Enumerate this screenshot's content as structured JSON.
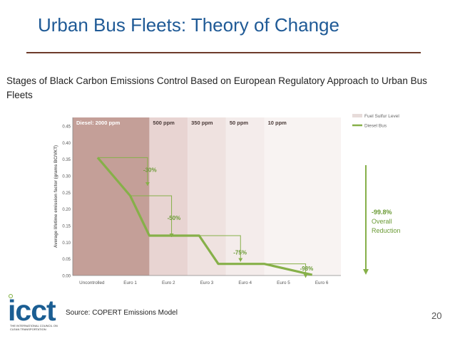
{
  "slide": {
    "title": "Urban Bus Fleets: Theory of Change",
    "subtitle": "Stages of Black Carbon Emissions Control Based on European Regulatory Approach to Urban Bus Fleets",
    "source": "Source: COPERT Emissions Model",
    "page_number": "20",
    "logo_text": "icct",
    "logo_tagline": "THE INTERNATIONAL COUNCIL ON CLEAN TRANSPORTATION"
  },
  "colors": {
    "title": "#1f5a96",
    "rule": "#6d3b2a",
    "line": "#86b049",
    "band_dark": "#c49f98",
    "band_1": "#e8d4d2",
    "band_2": "#efe2e0",
    "band_3": "#f4eceb",
    "band_4": "#f8f3f2",
    "band_5": "#fbf8f8",
    "pct_text": "#6a9a34"
  },
  "chart_data": {
    "type": "line",
    "ylabel": "Average lifetime emission factor (grams BC/VKT)",
    "ylim": [
      0,
      0.45
    ],
    "yticks": [
      "0.00",
      "0.05",
      "0.10",
      "0.15",
      "0.20",
      "0.25",
      "0.30",
      "0.35",
      "0.40",
      "0.45"
    ],
    "categories": [
      "Uncontrolled",
      "Euro 1",
      "Euro 2",
      "Euro 3",
      "Euro 4",
      "Euro 5",
      "Euro 6"
    ],
    "sulfur_levels": [
      "Diesel: 2000 ppm",
      "500 ppm",
      "350 ppm",
      "50 ppm",
      "10 ppm"
    ],
    "legend": [
      "Fuel Sulfur Level",
      "Diesel Bus"
    ],
    "series": [
      {
        "name": "Diesel Bus",
        "points": [
          {
            "x": 0.15,
            "y": 0.355
          },
          {
            "x": 1.0,
            "y": 0.24
          },
          {
            "x": 1.5,
            "y": 0.12
          },
          {
            "x": 2.8,
            "y": 0.12
          },
          {
            "x": 3.3,
            "y": 0.035
          },
          {
            "x": 4.5,
            "y": 0.035
          },
          {
            "x": 5.75,
            "y": 0.002
          }
        ]
      }
    ],
    "annotations": [
      "-30%",
      "-50%",
      "-75%",
      "-98%",
      "-99.8%",
      "Overall",
      "Reduction"
    ]
  }
}
